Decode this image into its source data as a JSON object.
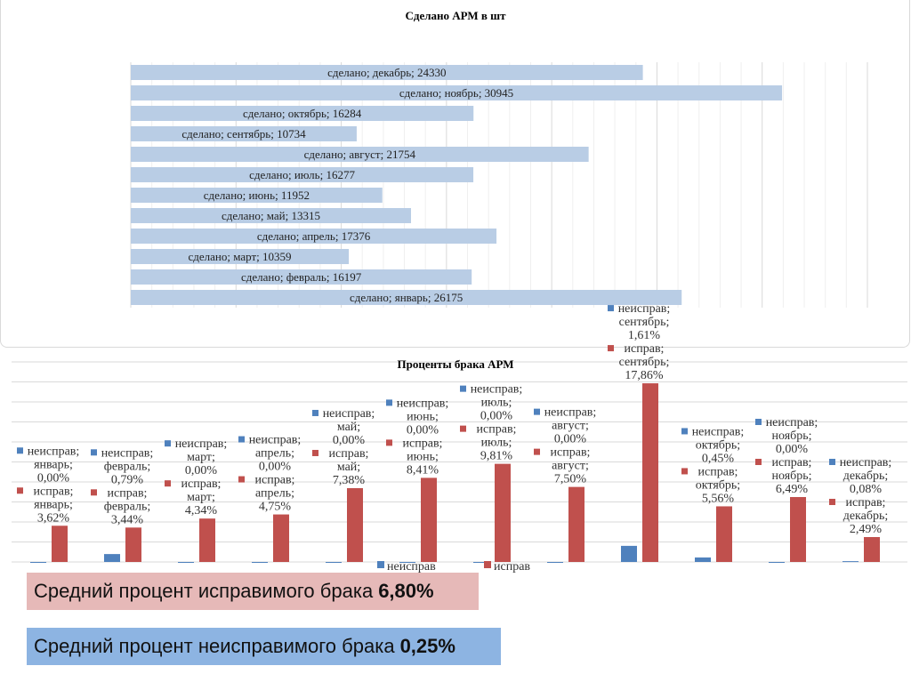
{
  "chart_data": [
    {
      "type": "bar",
      "orientation": "horizontal",
      "title": "Сделано АРМ в шт",
      "categories": [
        "январь",
        "февраль",
        "март",
        "апрель",
        "май",
        "июнь",
        "июль",
        "август",
        "сентябрь",
        "октябрь",
        "ноябрь",
        "декабрь"
      ],
      "series": [
        {
          "name": "сделано",
          "values": [
            26175,
            16197,
            10359,
            17376,
            13315,
            11952,
            16277,
            21754,
            10734,
            16284,
            30945,
            24330
          ],
          "color": "#b9cde5"
        }
      ],
      "xlim": [
        0,
        35000
      ],
      "grid": true,
      "data_label_format": "series; category; value"
    },
    {
      "type": "bar",
      "title": "Проценты брака АРМ",
      "categories": [
        "январь",
        "февраль",
        "март",
        "апрель",
        "май",
        "июнь",
        "июль",
        "август",
        "сентябрь",
        "октябрь",
        "ноябрь",
        "декабрь"
      ],
      "series": [
        {
          "name": "неисправ",
          "values": [
            0.0,
            0.79,
            0.0,
            0.0,
            0.0,
            0.0,
            0.0,
            0.0,
            1.61,
            0.45,
            0.0,
            0.08
          ],
          "color": "#4f81bd"
        },
        {
          "name": "исправ",
          "values": [
            3.62,
            3.44,
            4.34,
            4.75,
            7.38,
            8.41,
            9.81,
            7.5,
            17.86,
            5.56,
            6.49,
            2.49
          ],
          "color": "#c0504d"
        }
      ],
      "ylim": [
        0,
        20
      ],
      "grid": true,
      "legend": "bottom",
      "data_label_format": "series; category; value%"
    }
  ],
  "summary": {
    "fixable_label": "Средний процент исправимого брака",
    "fixable_value": "6,80%",
    "unfixable_label": "Средний процент неисправимого брака",
    "unfixable_value": "0,25%"
  }
}
